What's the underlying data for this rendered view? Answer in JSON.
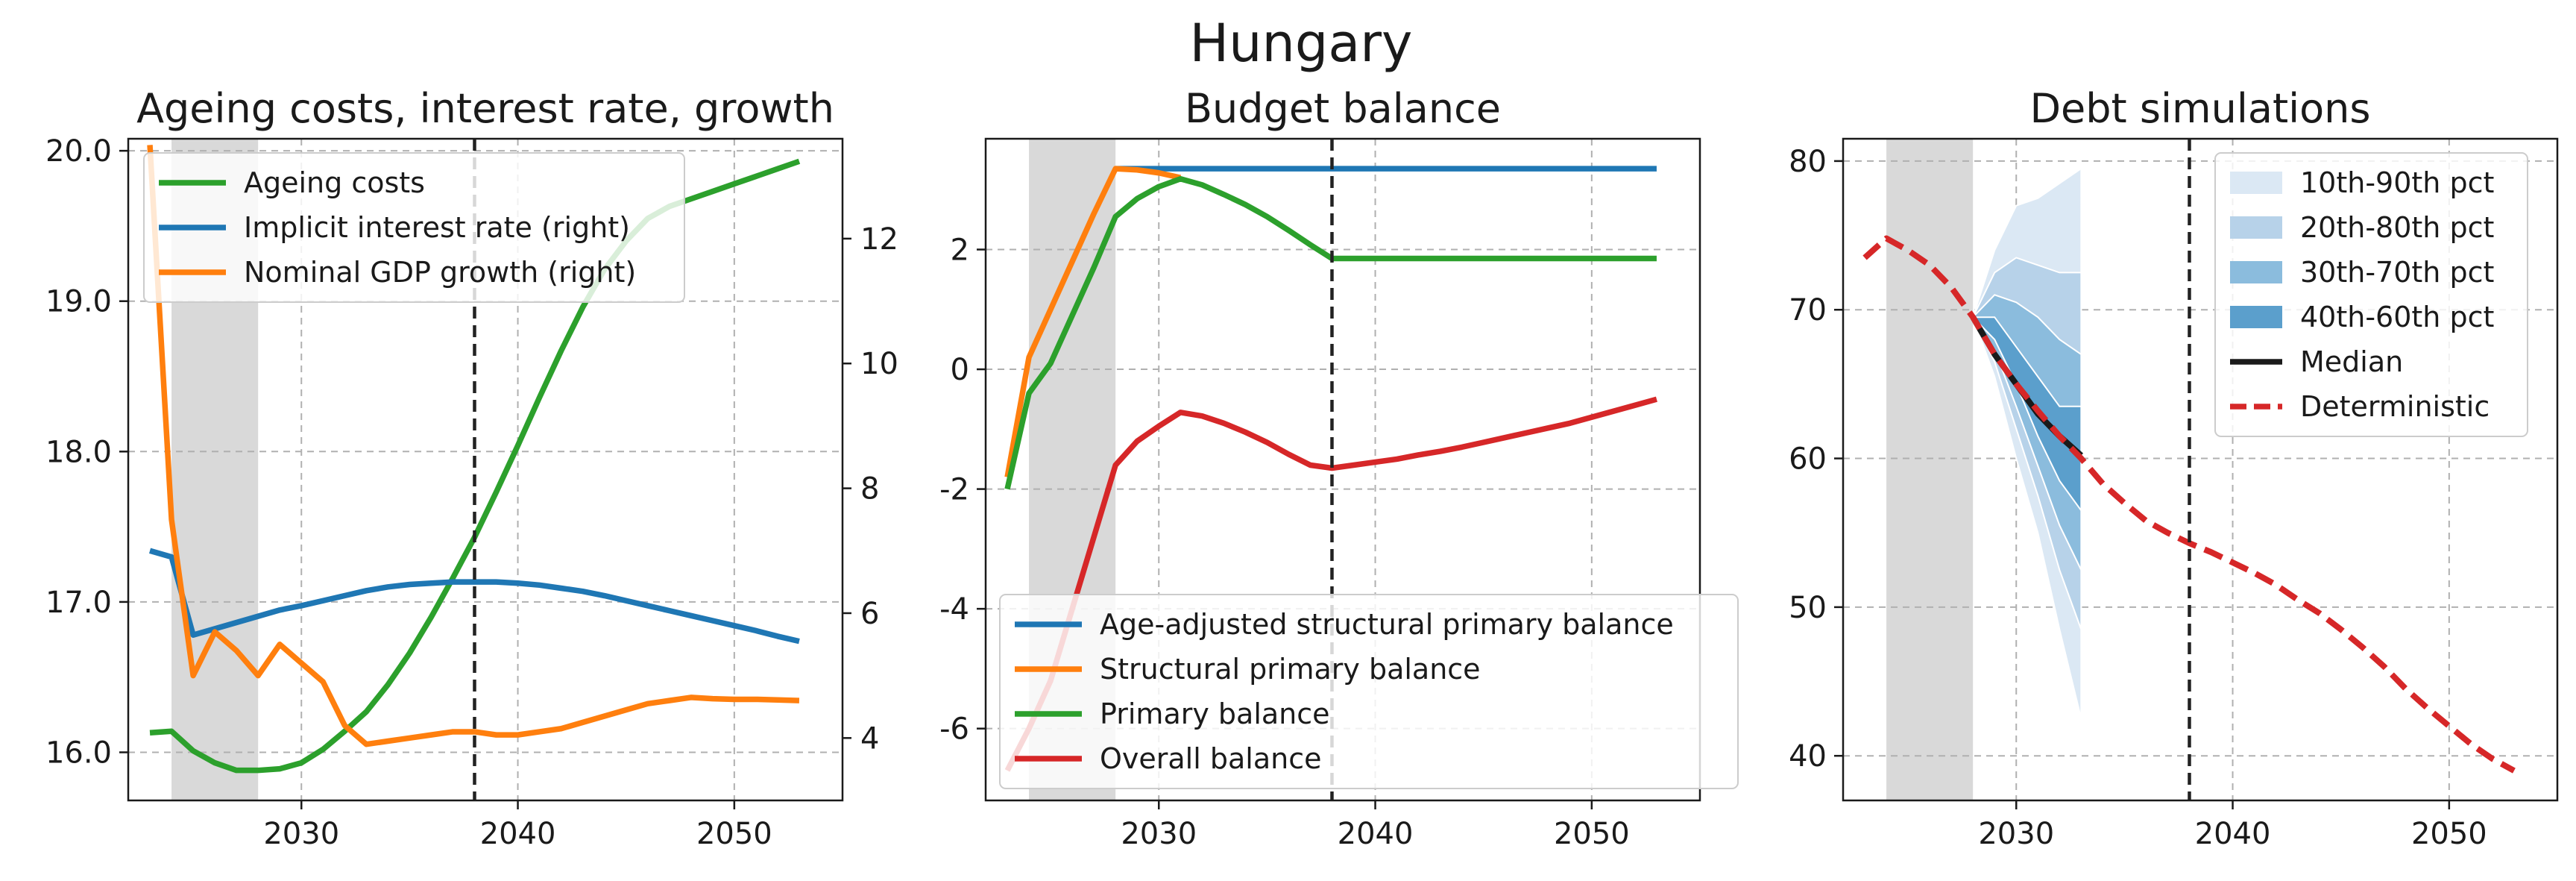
{
  "figure": {
    "title": "Hungary"
  },
  "chart_data": [
    {
      "type": "line",
      "title": "Ageing costs, interest rate, growth",
      "xlim": [
        2022,
        2055
      ],
      "xticks": [
        2030,
        2040,
        2050
      ],
      "ylim": [
        15.68,
        20.08
      ],
      "yticks": [
        16.0,
        17.0,
        18.0,
        19.0,
        20.0
      ],
      "ytick_labels": [
        "16.0",
        "17.0",
        "18.0",
        "19.0",
        "20.0"
      ],
      "y2lim": [
        3.0,
        13.6
      ],
      "y2ticks": [
        4,
        6,
        8,
        10,
        12
      ],
      "shaded_x": [
        2024,
        2028
      ],
      "vline_x": 2038,
      "grid": true,
      "legend_position": "upper left",
      "series": [
        {
          "name": "Ageing costs",
          "color": "#2ca02c",
          "axis": "left",
          "x": [
            2023,
            2024,
            2025,
            2026,
            2027,
            2028,
            2029,
            2030,
            2031,
            2032,
            2033,
            2034,
            2035,
            2036,
            2037,
            2038,
            2039,
            2040,
            2041,
            2042,
            2043,
            2044,
            2045,
            2046,
            2047,
            2048,
            2049,
            2050,
            2051,
            2052,
            2053
          ],
          "y": [
            16.13,
            16.14,
            16.01,
            15.93,
            15.88,
            15.88,
            15.89,
            15.93,
            16.02,
            16.14,
            16.27,
            16.45,
            16.66,
            16.9,
            17.16,
            17.43,
            17.73,
            18.04,
            18.36,
            18.67,
            18.96,
            19.21,
            19.4,
            19.55,
            19.63,
            19.68,
            19.73,
            19.78,
            19.83,
            19.88,
            19.93
          ]
        },
        {
          "name": "Implicit interest rate (right)",
          "color": "#1f77b4",
          "axis": "right",
          "x": [
            2023,
            2024,
            2025,
            2026,
            2027,
            2028,
            2029,
            2030,
            2031,
            2032,
            2033,
            2034,
            2035,
            2036,
            2037,
            2038,
            2039,
            2040,
            2041,
            2042,
            2043,
            2044,
            2045,
            2046,
            2047,
            2048,
            2049,
            2050,
            2051,
            2052,
            2053
          ],
          "y": [
            7.0,
            6.9,
            5.65,
            5.75,
            5.85,
            5.95,
            6.05,
            6.12,
            6.2,
            6.28,
            6.36,
            6.42,
            6.46,
            6.48,
            6.5,
            6.5,
            6.5,
            6.48,
            6.45,
            6.4,
            6.35,
            6.28,
            6.2,
            6.12,
            6.04,
            5.96,
            5.88,
            5.8,
            5.72,
            5.63,
            5.55
          ]
        },
        {
          "name": "Nominal GDP growth (right)",
          "color": "#ff7f0e",
          "axis": "right",
          "x": [
            2023,
            2024,
            2025,
            2026,
            2027,
            2028,
            2029,
            2030,
            2031,
            2032,
            2033,
            2034,
            2035,
            2036,
            2037,
            2038,
            2039,
            2040,
            2041,
            2042,
            2043,
            2044,
            2045,
            2046,
            2047,
            2048,
            2049,
            2050,
            2051,
            2052,
            2053
          ],
          "y": [
            13.5,
            7.5,
            5.0,
            5.7,
            5.4,
            5.0,
            5.5,
            5.2,
            4.9,
            4.2,
            3.9,
            3.95,
            4.0,
            4.05,
            4.1,
            4.1,
            4.05,
            4.05,
            4.1,
            4.15,
            4.25,
            4.35,
            4.45,
            4.55,
            4.6,
            4.65,
            4.63,
            4.62,
            4.62,
            4.61,
            4.6
          ]
        }
      ]
    },
    {
      "type": "line",
      "title": "Budget balance",
      "xlim": [
        2022,
        2055
      ],
      "xticks": [
        2030,
        2040,
        2050
      ],
      "ylim": [
        -7.2,
        3.85
      ],
      "yticks": [
        -6,
        -4,
        -2,
        0,
        2
      ],
      "ytick_labels": [
        "-6",
        "-4",
        "-2",
        "0",
        "2"
      ],
      "shaded_x": [
        2024,
        2028
      ],
      "vline_x": 2038,
      "grid": true,
      "legend_position": "lower right",
      "series": [
        {
          "name": "Age-adjusted structural primary balance",
          "color": "#1f77b4",
          "x": [
            2028,
            2029,
            2030,
            2031,
            2032,
            2033,
            2034,
            2035,
            2036,
            2037,
            2038,
            2039,
            2040,
            2041,
            2042,
            2043,
            2044,
            2045,
            2046,
            2047,
            2048,
            2049,
            2050,
            2051,
            2052,
            2053
          ],
          "y": [
            3.35,
            3.35,
            3.35,
            3.35,
            3.35,
            3.35,
            3.35,
            3.35,
            3.35,
            3.35,
            3.35,
            3.35,
            3.35,
            3.35,
            3.35,
            3.35,
            3.35,
            3.35,
            3.35,
            3.35,
            3.35,
            3.35,
            3.35,
            3.35,
            3.35,
            3.35
          ]
        },
        {
          "name": "Structural primary balance",
          "color": "#ff7f0e",
          "x": [
            2023,
            2024,
            2025,
            2026,
            2027,
            2028,
            2029,
            2030,
            2031
          ],
          "y": [
            -1.8,
            0.2,
            1.0,
            1.8,
            2.6,
            3.35,
            3.33,
            3.28,
            3.2
          ]
        },
        {
          "name": "Primary balance",
          "color": "#2ca02c",
          "x": [
            2023,
            2024,
            2025,
            2026,
            2027,
            2028,
            2029,
            2030,
            2031,
            2032,
            2033,
            2034,
            2035,
            2036,
            2037,
            2038,
            2039,
            2040,
            2041,
            2042,
            2043,
            2044,
            2045,
            2046,
            2047,
            2048,
            2049,
            2050,
            2051,
            2052,
            2053
          ],
          "y": [
            -2.0,
            -0.4,
            0.1,
            0.9,
            1.7,
            2.55,
            2.85,
            3.05,
            3.18,
            3.08,
            2.92,
            2.75,
            2.55,
            2.32,
            2.08,
            1.85,
            1.85,
            1.85,
            1.85,
            1.85,
            1.85,
            1.85,
            1.85,
            1.85,
            1.85,
            1.85,
            1.85,
            1.85,
            1.85,
            1.85,
            1.85
          ]
        },
        {
          "name": "Overall balance",
          "color": "#d62728",
          "x": [
            2023,
            2024,
            2025,
            2026,
            2027,
            2028,
            2029,
            2030,
            2031,
            2032,
            2033,
            2034,
            2035,
            2036,
            2037,
            2038,
            2039,
            2040,
            2041,
            2042,
            2043,
            2044,
            2045,
            2046,
            2047,
            2048,
            2049,
            2050,
            2051,
            2052,
            2053
          ],
          "y": [
            -6.7,
            -6.0,
            -5.2,
            -4.0,
            -2.8,
            -1.6,
            -1.2,
            -0.95,
            -0.72,
            -0.78,
            -0.9,
            -1.05,
            -1.22,
            -1.42,
            -1.6,
            -1.65,
            -1.6,
            -1.55,
            -1.5,
            -1.43,
            -1.37,
            -1.3,
            -1.22,
            -1.14,
            -1.06,
            -0.98,
            -0.9,
            -0.8,
            -0.7,
            -0.6,
            -0.5
          ]
        }
      ]
    },
    {
      "type": "area",
      "title": "Debt simulations",
      "xlim": [
        2022,
        2055
      ],
      "xticks": [
        2030,
        2040,
        2050
      ],
      "ylim": [
        37,
        81.5
      ],
      "yticks": [
        40,
        50,
        60,
        70,
        80
      ],
      "ytick_labels": [
        "40",
        "50",
        "60",
        "70",
        "80"
      ],
      "shaded_x": [
        2024,
        2028
      ],
      "vline_x": 2038,
      "grid": true,
      "legend_position": "upper right",
      "fan_x": [
        2028,
        2029,
        2030,
        2031,
        2032,
        2033
      ],
      "bands": [
        {
          "name": "10th-90th pct",
          "color": "#dbe8f4",
          "lower": [
            69.5,
            65.5,
            60.0,
            55.0,
            48.5,
            42.5
          ],
          "upper": [
            69.5,
            74.0,
            77.0,
            77.5,
            78.5,
            79.5
          ]
        },
        {
          "name": "20th-80th pct",
          "color": "#b7d2e9",
          "lower": [
            69.5,
            66.5,
            62.0,
            57.5,
            52.5,
            48.5
          ],
          "upper": [
            69.5,
            72.5,
            73.5,
            73.0,
            72.5,
            72.5
          ]
        },
        {
          "name": "30th-70th pct",
          "color": "#8bbcdd",
          "lower": [
            69.5,
            67.3,
            63.5,
            59.5,
            55.5,
            52.5
          ],
          "upper": [
            69.5,
            71.0,
            70.5,
            69.5,
            68.0,
            67.0
          ]
        },
        {
          "name": "40th-60th pct",
          "color": "#5b9fcc",
          "lower": [
            69.5,
            68.0,
            65.0,
            61.5,
            58.5,
            56.5
          ],
          "upper": [
            69.5,
            69.5,
            67.5,
            65.5,
            63.5,
            63.5
          ]
        }
      ],
      "series": [
        {
          "name": "Median",
          "color": "#1a1a1a",
          "style": "solid",
          "x": [
            2028,
            2029,
            2030,
            2031,
            2032,
            2033
          ],
          "y": [
            69.5,
            67.0,
            65.0,
            63.0,
            61.5,
            60.2
          ]
        },
        {
          "name": "Deterministic",
          "color": "#d62728",
          "style": "dashed",
          "x": [
            2023,
            2024,
            2025,
            2026,
            2027,
            2028,
            2029,
            2030,
            2031,
            2032,
            2033,
            2034,
            2035,
            2036,
            2037,
            2038,
            2039,
            2040,
            2041,
            2042,
            2043,
            2044,
            2045,
            2046,
            2047,
            2048,
            2049,
            2050,
            2051,
            2052,
            2053
          ],
          "y": [
            73.5,
            74.8,
            74.0,
            73.0,
            71.5,
            69.5,
            67.0,
            65.0,
            63.2,
            61.5,
            60.0,
            58.3,
            57.0,
            55.8,
            55.0,
            54.3,
            53.7,
            53.0,
            52.3,
            51.5,
            50.5,
            49.6,
            48.5,
            47.3,
            46.0,
            44.5,
            43.2,
            42.0,
            40.8,
            39.8,
            39.0
          ]
        }
      ]
    }
  ]
}
